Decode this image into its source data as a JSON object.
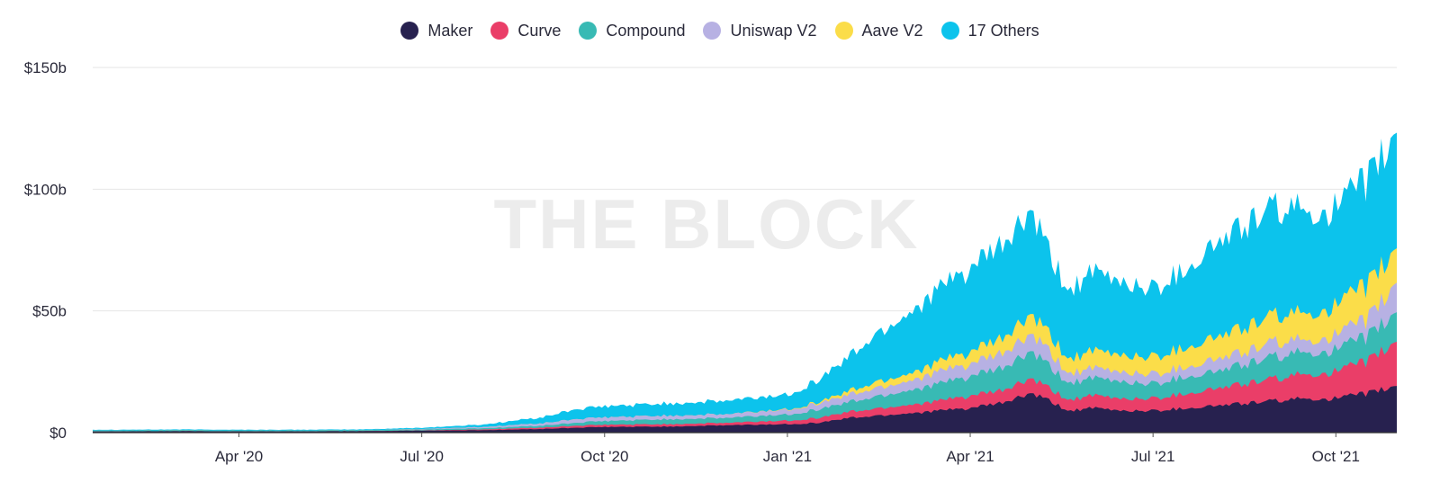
{
  "watermark": "THE BLOCK",
  "chart_data": {
    "type": "area",
    "stacked": true,
    "title": "",
    "xlabel": "",
    "ylabel": "",
    "ylim": [
      0,
      150
    ],
    "y_ticks": [
      {
        "value": 0,
        "label": "$0"
      },
      {
        "value": 50,
        "label": "$50b"
      },
      {
        "value": 100,
        "label": "$100b"
      },
      {
        "value": 150,
        "label": "$150b"
      }
    ],
    "x_ticks": [
      {
        "month": 2,
        "label": "Apr '20"
      },
      {
        "month": 5,
        "label": "Jul '20"
      },
      {
        "month": 8,
        "label": "Oct '20"
      },
      {
        "month": 11,
        "label": "Jan '21"
      },
      {
        "month": 14,
        "label": "Apr '21"
      },
      {
        "month": 17,
        "label": "Jul '21"
      },
      {
        "month": 20,
        "label": "Oct '21"
      }
    ],
    "xlim_months": [
      -0.4,
      21.0
    ],
    "legend_position": "top-center",
    "grid": true,
    "x": [
      -0.4,
      0,
      1,
      2,
      3,
      4,
      5,
      6,
      7,
      7.5,
      8,
      9,
      10,
      11,
      11.5,
      12,
      12.5,
      13,
      13.5,
      14,
      14.5,
      15,
      15.3,
      15.6,
      16,
      16.5,
      17,
      17.5,
      18,
      18.5,
      19,
      19.5,
      20,
      20.5,
      21
    ],
    "series": [
      {
        "name": "Maker",
        "color": "#27214f",
        "values": [
          0.5,
          0.5,
          0.6,
          0.5,
          0.5,
          0.6,
          0.8,
          1,
          1.5,
          2,
          2.3,
          2.5,
          3,
          3.5,
          4,
          6,
          7,
          8,
          9,
          10,
          12,
          16,
          13,
          9,
          10,
          9,
          9,
          10,
          11,
          12,
          13,
          14,
          14,
          16,
          19
        ]
      },
      {
        "name": "Curve",
        "color": "#ea3e68",
        "values": [
          0,
          0,
          0,
          0,
          0,
          0,
          0.1,
          0.3,
          0.6,
          0.8,
          0.9,
          1,
          1,
          1.5,
          2,
          2.5,
          3,
          3.5,
          4,
          5,
          5,
          6,
          5,
          4.5,
          5,
          5,
          5,
          6,
          7,
          8,
          9,
          10,
          11,
          13,
          18
        ]
      },
      {
        "name": "Compound",
        "color": "#38bab4",
        "values": [
          0.4,
          0.4,
          0.4,
          0.4,
          0.4,
          0.4,
          0.4,
          0.5,
          0.8,
          1.2,
          1.5,
          2,
          2,
          2.5,
          3.5,
          4,
          5,
          6,
          7,
          8,
          9,
          11,
          9,
          7,
          7,
          7,
          6,
          7,
          7,
          8,
          9,
          9,
          9,
          10,
          12
        ]
      },
      {
        "name": "Uniswap V2",
        "color": "#b7b1e3",
        "values": [
          0,
          0,
          0,
          0,
          0,
          0,
          0.2,
          0.5,
          1,
          1.5,
          1.5,
          1.5,
          1.5,
          2,
          2.5,
          3,
          3.5,
          4,
          5,
          5,
          6,
          7,
          6,
          4,
          4,
          4,
          4,
          4,
          5,
          5,
          6,
          5,
          6,
          7,
          12
        ]
      },
      {
        "name": "Aave V2",
        "color": "#fbdd49",
        "values": [
          0,
          0,
          0,
          0,
          0,
          0,
          0,
          0,
          0,
          0,
          0,
          0,
          0,
          0.2,
          0.5,
          1.5,
          2.5,
          3,
          4,
          5,
          6,
          8,
          7,
          6,
          7,
          7,
          7,
          8,
          9,
          10,
          11,
          11,
          12,
          14,
          14
        ]
      },
      {
        "name": "17 Others",
        "color": "#0cc3ec",
        "values": [
          0.3,
          0.3,
          0.3,
          0.3,
          0.3,
          0.3,
          0.5,
          1,
          2.5,
          4,
          4.5,
          5,
          5.5,
          6,
          9,
          14,
          20,
          25,
          30,
          34,
          38,
          42,
          33,
          28,
          32,
          30,
          28,
          32,
          38,
          42,
          44,
          42,
          40,
          43,
          47
        ]
      }
    ]
  }
}
